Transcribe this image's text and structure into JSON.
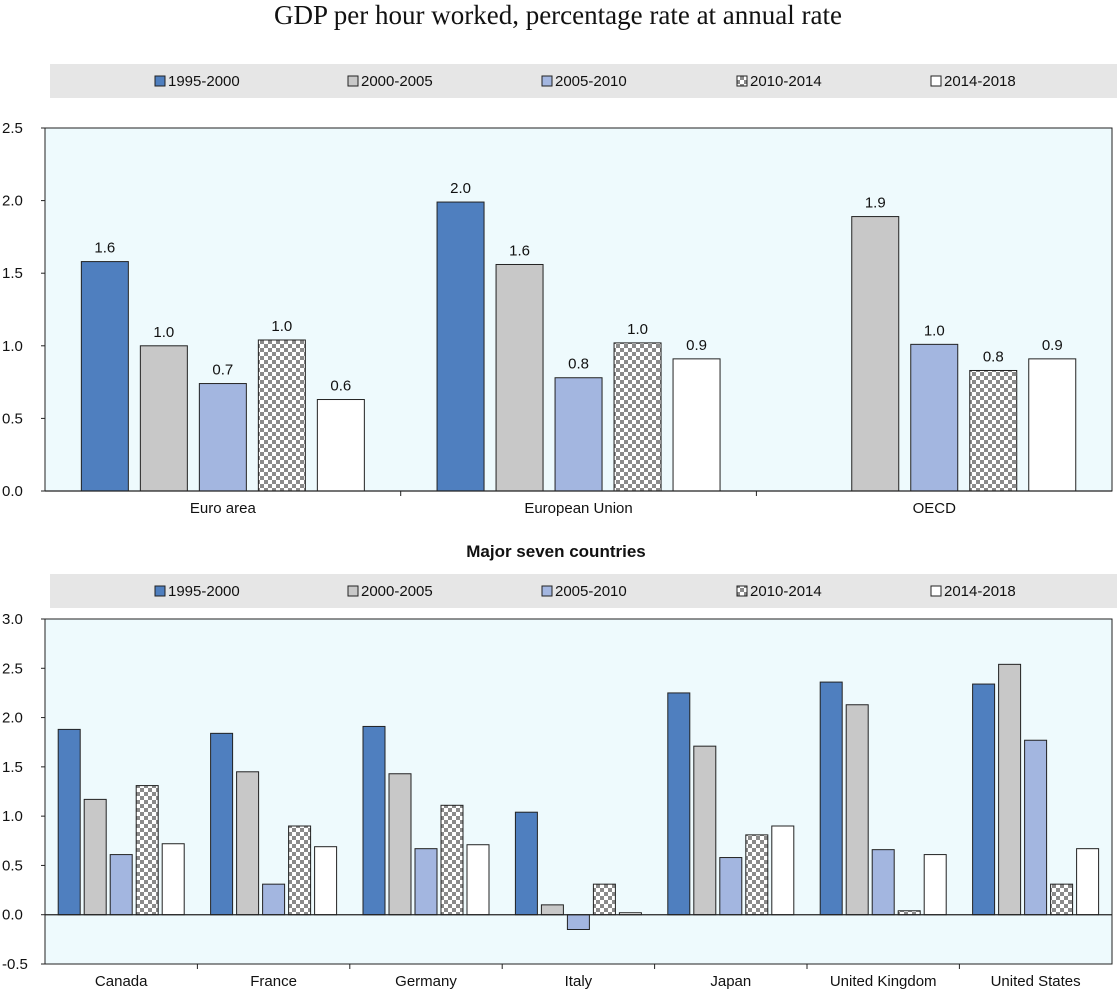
{
  "title": "GDP per hour worked, percentage rate at annual rate",
  "legend": {
    "entries": [
      "1995-2000",
      "2000-2005",
      "2005-2010",
      "2010-2014",
      "2014-2018"
    ]
  },
  "colors": {
    "1995-2000": "#4f7fbf",
    "2000-2005": "#c8c8c8",
    "2005-2010": "#a3b6e0",
    "2010-2014": "checkered",
    "2014-2018": "#ffffff",
    "plot_background": "#eefafd",
    "legend_background": "#e6e6e6"
  },
  "chart_data": [
    {
      "type": "bar",
      "title": "",
      "categories": [
        "Euro area",
        "European Union",
        "OECD"
      ],
      "series": [
        {
          "name": "1995-2000",
          "values": [
            1.58,
            1.99,
            null
          ],
          "labels": [
            "1.6",
            "2.0",
            ""
          ]
        },
        {
          "name": "2000-2005",
          "values": [
            1.0,
            1.56,
            1.89
          ],
          "labels": [
            "1.0",
            "1.6",
            "1.9"
          ]
        },
        {
          "name": "2005-2010",
          "values": [
            0.74,
            0.78,
            1.01
          ],
          "labels": [
            "0.7",
            "0.8",
            "1.0"
          ]
        },
        {
          "name": "2010-2014",
          "values": [
            1.04,
            1.02,
            0.83
          ],
          "labels": [
            "1.0",
            "1.0",
            "0.8"
          ]
        },
        {
          "name": "2014-2018",
          "values": [
            0.63,
            0.91,
            0.91
          ],
          "labels": [
            "0.6",
            "0.9",
            "0.9"
          ]
        }
      ],
      "ylim": [
        0,
        2.5
      ],
      "yticks": [
        "0.0",
        "0.5",
        "1.0",
        "1.5",
        "2.0",
        "2.5"
      ],
      "xlabel": "",
      "ylabel": "",
      "legend_position": "top"
    },
    {
      "type": "bar",
      "title": "Major seven countries",
      "categories": [
        "Canada",
        "France",
        "Germany",
        "Italy",
        "Japan",
        "United Kingdom",
        "United States"
      ],
      "series": [
        {
          "name": "1995-2000",
          "values": [
            1.88,
            1.84,
            1.91,
            1.04,
            2.25,
            2.36,
            2.34
          ]
        },
        {
          "name": "2000-2005",
          "values": [
            1.17,
            1.45,
            1.43,
            0.1,
            1.71,
            2.13,
            2.54
          ]
        },
        {
          "name": "2005-2010",
          "values": [
            0.61,
            0.31,
            0.67,
            -0.15,
            0.58,
            0.66,
            1.77
          ]
        },
        {
          "name": "2010-2014",
          "values": [
            1.31,
            0.9,
            1.11,
            0.31,
            0.81,
            0.04,
            0.31
          ]
        },
        {
          "name": "2014-2018",
          "values": [
            0.72,
            0.69,
            0.71,
            0.02,
            0.9,
            0.61,
            0.67
          ]
        }
      ],
      "ylim": [
        -0.5,
        3.0
      ],
      "yticks": [
        "-0.5",
        "0.0",
        "0.5",
        "1.0",
        "1.5",
        "2.0",
        "2.5",
        "3.0"
      ],
      "xlabel": "",
      "ylabel": "",
      "legend_position": "top"
    }
  ]
}
